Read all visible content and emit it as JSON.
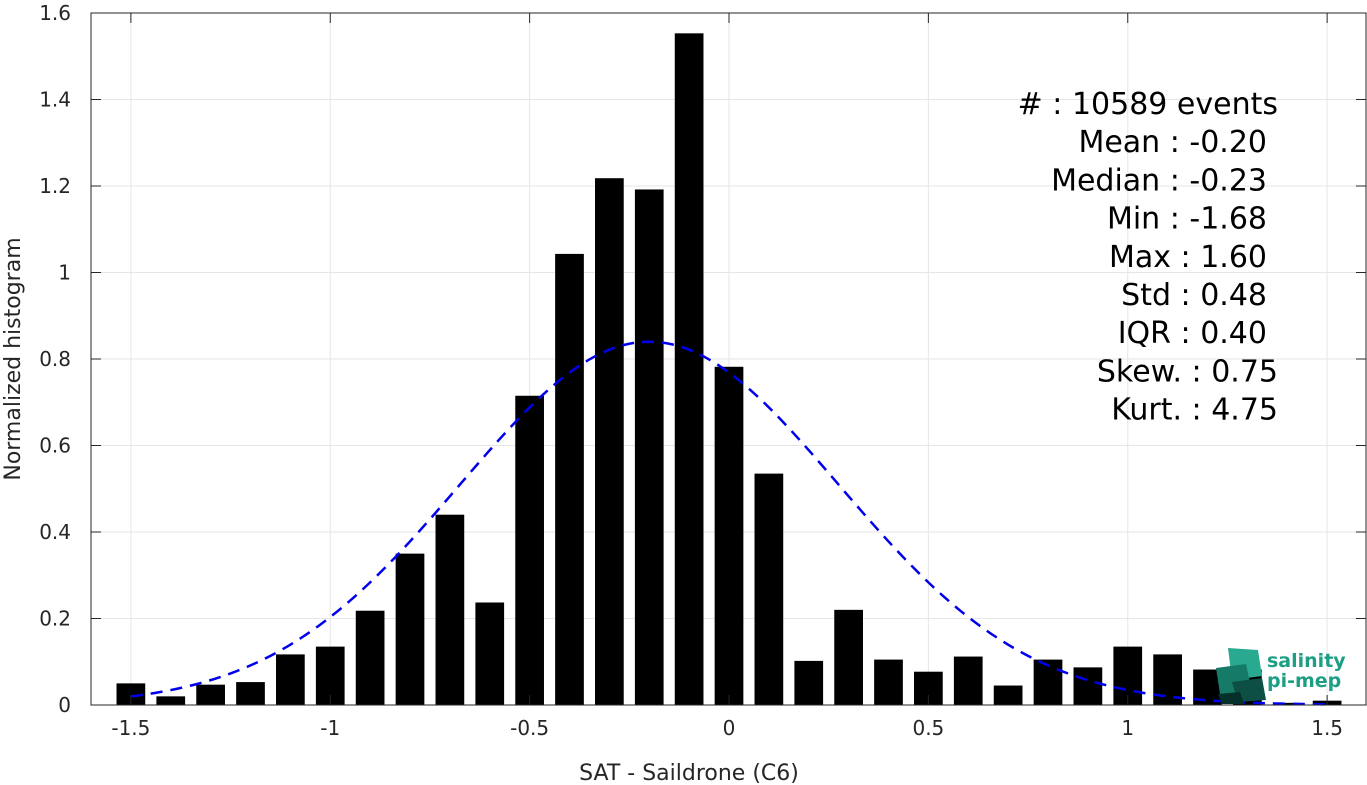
{
  "chart_data": {
    "type": "bar",
    "xlabel": "SAT - Saildrone (C6)",
    "ylabel": "Normalized histogram",
    "xlim": [
      -1.6,
      1.6
    ],
    "ylim": [
      0,
      1.6
    ],
    "grid": true,
    "x_ticks": [
      {
        "value": -1.5,
        "label": "-1.5"
      },
      {
        "value": -1.0,
        "label": "-1"
      },
      {
        "value": -0.5,
        "label": "-0.5"
      },
      {
        "value": 0.0,
        "label": "0"
      },
      {
        "value": 0.5,
        "label": "0.5"
      },
      {
        "value": 1.0,
        "label": "1"
      },
      {
        "value": 1.5,
        "label": "1.5"
      }
    ],
    "y_ticks": [
      {
        "value": 0,
        "label": "0"
      },
      {
        "value": 0.2,
        "label": "0.2"
      },
      {
        "value": 0.4,
        "label": "0.4"
      },
      {
        "value": 0.6,
        "label": "0.6"
      },
      {
        "value": 0.8,
        "label": "0.8"
      },
      {
        "value": 1.0,
        "label": "1"
      },
      {
        "value": 1.2,
        "label": "1.2"
      },
      {
        "value": 1.4,
        "label": "1.4"
      },
      {
        "value": 1.6,
        "label": "1.6"
      }
    ],
    "bin_width": 0.1,
    "bars": [
      {
        "x": -1.5,
        "y": 0.05
      },
      {
        "x": -1.4,
        "y": 0.02
      },
      {
        "x": -1.3,
        "y": 0.047
      },
      {
        "x": -1.2,
        "y": 0.053
      },
      {
        "x": -1.1,
        "y": 0.117
      },
      {
        "x": -1.0,
        "y": 0.135
      },
      {
        "x": -0.9,
        "y": 0.218
      },
      {
        "x": -0.8,
        "y": 0.35
      },
      {
        "x": -0.7,
        "y": 0.44
      },
      {
        "x": -0.6,
        "y": 0.237
      },
      {
        "x": -0.5,
        "y": 0.715
      },
      {
        "x": -0.4,
        "y": 1.043
      },
      {
        "x": -0.3,
        "y": 1.218
      },
      {
        "x": -0.2,
        "y": 1.192
      },
      {
        "x": -0.1,
        "y": 1.553
      },
      {
        "x": 0.0,
        "y": 0.782
      },
      {
        "x": 0.1,
        "y": 0.535
      },
      {
        "x": 0.2,
        "y": 0.102
      },
      {
        "x": 0.3,
        "y": 0.22
      },
      {
        "x": 0.4,
        "y": 0.105
      },
      {
        "x": 0.5,
        "y": 0.077
      },
      {
        "x": 0.6,
        "y": 0.112
      },
      {
        "x": 0.7,
        "y": 0.045
      },
      {
        "x": 0.8,
        "y": 0.105
      },
      {
        "x": 0.9,
        "y": 0.087
      },
      {
        "x": 1.0,
        "y": 0.135
      },
      {
        "x": 1.1,
        "y": 0.117
      },
      {
        "x": 1.2,
        "y": 0.082
      },
      {
        "x": 1.3,
        "y": 0.082
      },
      {
        "x": 1.4,
        "y": 0.005
      },
      {
        "x": 1.5,
        "y": 0.01
      }
    ],
    "fit_curve": {
      "style": "dashed",
      "color": "#0000ee",
      "mean": -0.2,
      "std": 0.475,
      "x_range": [
        -1.5,
        1.5
      ]
    },
    "stats_lines": [
      "#  : 10589 events",
      "Mean : -0.20",
      "Median : -0.23",
      "Min : -1.68",
      "Max : 1.60",
      "Std : 0.48",
      "IQR : 0.40",
      "Skew. : 0.75",
      "Kurt. : 4.75"
    ],
    "bar_color": "#000000"
  },
  "logo": {
    "line1": "salinity",
    "line2": "pi-mep",
    "color": "#1f9e86"
  }
}
